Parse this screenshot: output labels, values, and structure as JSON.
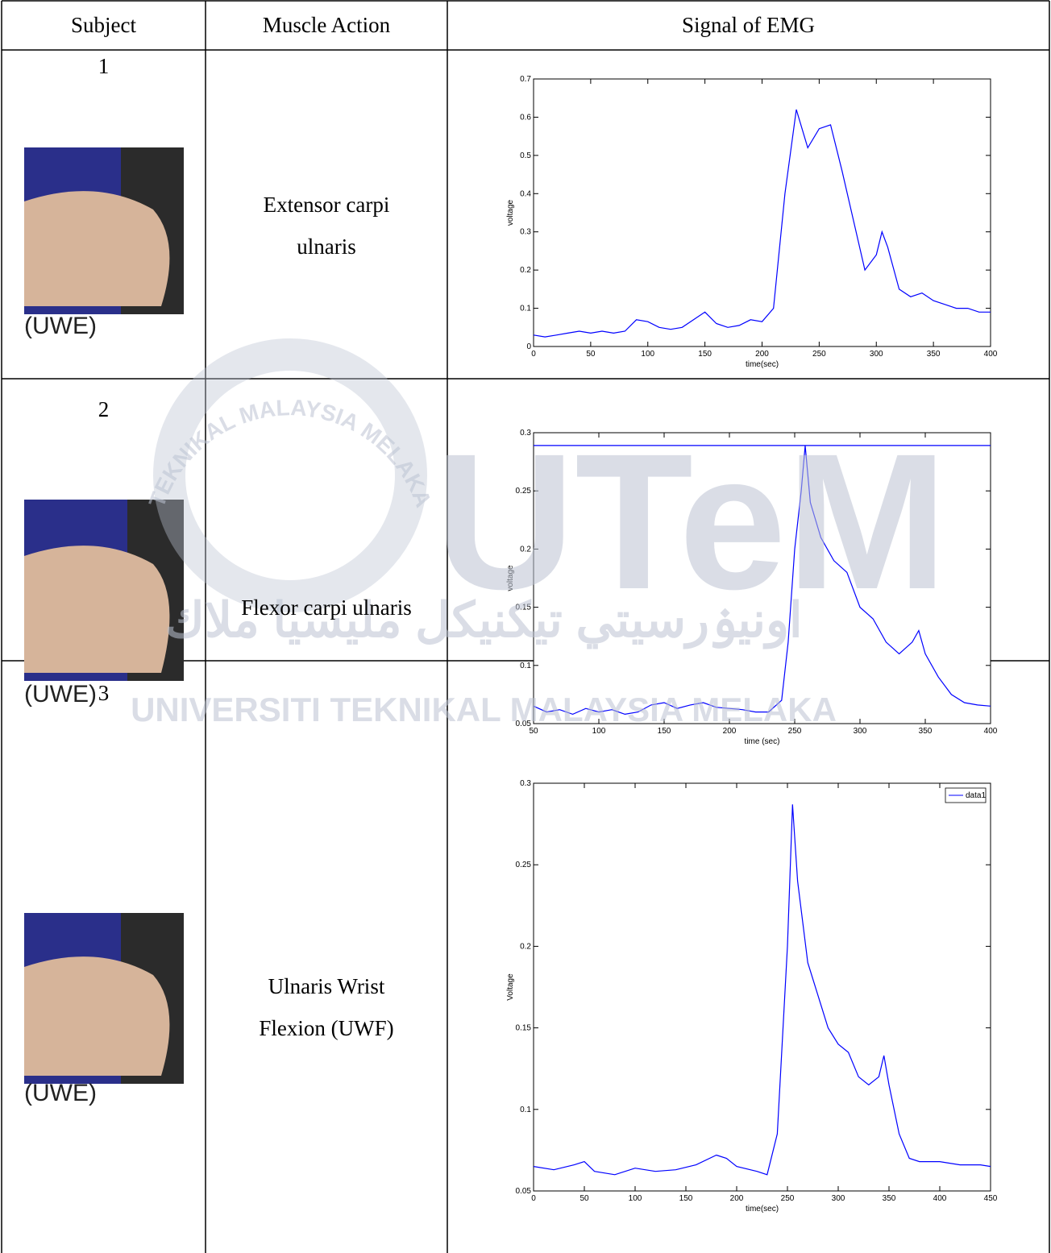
{
  "table": {
    "header": [
      "Subject",
      "Muscle Action",
      "Signal of EMG"
    ],
    "rows": [
      {
        "subject": "1",
        "caption": "(UWE)",
        "action": "Extensor carpi ulnaris"
      },
      {
        "subject": "2",
        "caption": "(UWE)",
        "action": "Flexor carpi ulnaris"
      },
      {
        "subject": "3",
        "caption": "(UWE)",
        "action": "Ulnaris Wrist Flexion (UWF)"
      }
    ]
  },
  "watermark": {
    "logo": "UTeM",
    "ring": "TEKNIKAL MALAYSIA MELAKA",
    "name": "UNIVERSITI TEKNIKAL MALAYSIA MELAKA",
    "arabic": "اونيۏرسيتي تيكنيكل مليسيا ملاك"
  },
  "chart_data": [
    {
      "type": "line",
      "xlabel": "time(sec)",
      "ylabel": "voltage",
      "xlim": [
        0,
        400
      ],
      "ylim": [
        0,
        0.7
      ],
      "xticks": [
        0,
        50,
        100,
        150,
        200,
        250,
        300,
        350,
        400
      ],
      "yticks": [
        0,
        0.1,
        0.2,
        0.3,
        0.4,
        0.5,
        0.6,
        0.7
      ],
      "series": [
        {
          "color": "#0000ff",
          "x": [
            0,
            10,
            20,
            30,
            40,
            50,
            60,
            70,
            80,
            90,
            100,
            110,
            120,
            130,
            140,
            150,
            160,
            170,
            180,
            190,
            200,
            210,
            220,
            230,
            240,
            250,
            260,
            270,
            280,
            290,
            300,
            305,
            310,
            320,
            330,
            340,
            350,
            360,
            370,
            380,
            390,
            400
          ],
          "values": [
            0.03,
            0.025,
            0.03,
            0.035,
            0.04,
            0.035,
            0.04,
            0.035,
            0.04,
            0.07,
            0.065,
            0.05,
            0.045,
            0.05,
            0.07,
            0.09,
            0.06,
            0.05,
            0.055,
            0.07,
            0.065,
            0.1,
            0.4,
            0.62,
            0.52,
            0.57,
            0.58,
            0.46,
            0.33,
            0.2,
            0.24,
            0.3,
            0.26,
            0.15,
            0.13,
            0.14,
            0.12,
            0.11,
            0.1,
            0.1,
            0.09,
            0.09
          ]
        }
      ]
    },
    {
      "type": "line",
      "xlabel": "time (sec)",
      "ylabel": "voltage",
      "xlim": [
        50,
        400
      ],
      "ylim": [
        0.05,
        0.3
      ],
      "xticks": [
        50,
        100,
        150,
        200,
        250,
        300,
        350,
        400
      ],
      "yticks": [
        0.05,
        0.1,
        0.15,
        0.2,
        0.25,
        0.3
      ],
      "series": [
        {
          "color": "#0000ff",
          "x": [
            50,
            60,
            70,
            80,
            90,
            100,
            110,
            120,
            130,
            140,
            150,
            160,
            170,
            180,
            190,
            200,
            210,
            220,
            230,
            240,
            245,
            250,
            255,
            258,
            262,
            270,
            280,
            290,
            300,
            310,
            320,
            330,
            340,
            345,
            350,
            360,
            370,
            380,
            390,
            400
          ],
          "values": [
            0.065,
            0.06,
            0.062,
            0.058,
            0.063,
            0.06,
            0.062,
            0.058,
            0.06,
            0.066,
            0.068,
            0.063,
            0.066,
            0.068,
            0.064,
            0.063,
            0.062,
            0.06,
            0.06,
            0.07,
            0.12,
            0.2,
            0.25,
            0.289,
            0.24,
            0.21,
            0.19,
            0.18,
            0.15,
            0.14,
            0.12,
            0.11,
            0.12,
            0.13,
            0.11,
            0.09,
            0.075,
            0.068,
            0.066,
            0.065
          ]
        },
        {
          "color": "#0000ff",
          "x": [
            50,
            400
          ],
          "values": [
            0.289,
            0.289
          ]
        }
      ]
    },
    {
      "type": "line",
      "xlabel": "time(sec)",
      "ylabel": "Voltage",
      "xlim": [
        0,
        450
      ],
      "ylim": [
        0.05,
        0.3
      ],
      "xticks": [
        0,
        50,
        100,
        150,
        200,
        250,
        300,
        350,
        400,
        450
      ],
      "yticks": [
        0.05,
        0.1,
        0.15,
        0.2,
        0.25,
        0.3
      ],
      "legend": "upper right",
      "series": [
        {
          "name": "data1",
          "color": "#0000ff",
          "x": [
            0,
            20,
            40,
            50,
            60,
            80,
            100,
            120,
            140,
            160,
            180,
            190,
            200,
            220,
            230,
            240,
            250,
            255,
            260,
            270,
            280,
            290,
            300,
            310,
            320,
            330,
            340,
            345,
            350,
            360,
            370,
            380,
            400,
            420,
            440,
            450
          ],
          "values": [
            0.065,
            0.063,
            0.066,
            0.068,
            0.062,
            0.06,
            0.064,
            0.062,
            0.063,
            0.066,
            0.072,
            0.07,
            0.065,
            0.062,
            0.06,
            0.085,
            0.2,
            0.287,
            0.24,
            0.19,
            0.17,
            0.15,
            0.14,
            0.135,
            0.12,
            0.115,
            0.12,
            0.133,
            0.115,
            0.085,
            0.07,
            0.068,
            0.068,
            0.066,
            0.066,
            0.065
          ]
        }
      ]
    }
  ]
}
